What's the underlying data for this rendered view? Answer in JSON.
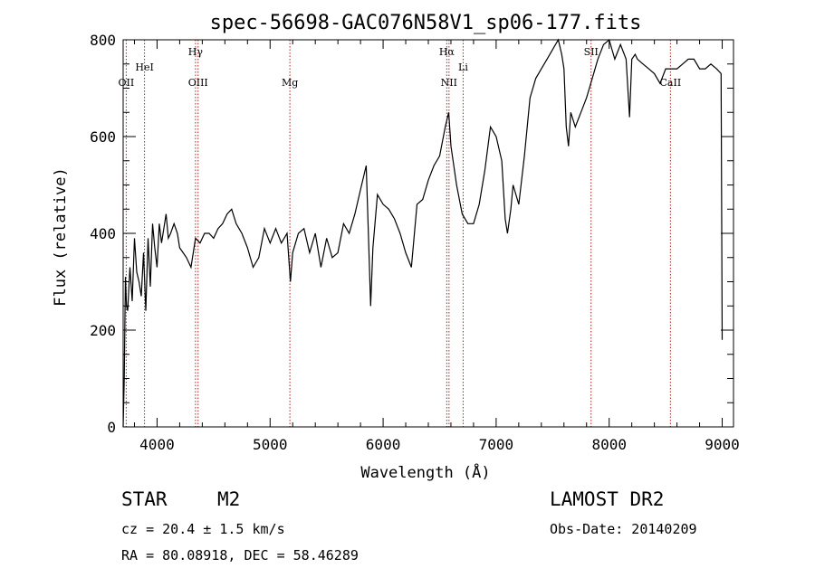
{
  "chart_data": {
    "type": "line",
    "title": "spec-56698-GAC076N58V1_sp06-177.fits",
    "xlabel": "Wavelength (Å)",
    "ylabel": "Flux (relative)",
    "xlim": [
      3700,
      9100
    ],
    "ylim": [
      0,
      800
    ],
    "x_ticks": [
      4000,
      5000,
      6000,
      7000,
      8000,
      9000
    ],
    "y_ticks": [
      0,
      200,
      400,
      600,
      800
    ],
    "x_tick_labels": [
      "4000",
      "5000",
      "6000",
      "7000",
      "8000",
      "9000"
    ],
    "y_tick_labels": [
      "0",
      "200",
      "400",
      "600",
      "800"
    ],
    "grid": false,
    "line_color": "#000000",
    "marker_color": "#b22222",
    "spectral_lines": [
      {
        "label": "OII",
        "wavelength": 3727
      },
      {
        "label": "HeI",
        "wavelength": 3889
      },
      {
        "label": "Hγ",
        "wavelength": 4340
      },
      {
        "label": "OIII",
        "wavelength": 4363
      },
      {
        "label": "Mg",
        "wavelength": 5175
      },
      {
        "label": "Hα",
        "wavelength": 6563
      },
      {
        "label": "NII",
        "wavelength": 6583
      },
      {
        "label": "Li",
        "wavelength": 6708
      },
      {
        "label": "SII",
        "wavelength": 7840
      },
      {
        "label": "CaII",
        "wavelength": 8542
      }
    ],
    "series": [
      {
        "x": [
          3700,
          3710,
          3720,
          3730,
          3740,
          3760,
          3780,
          3800,
          3820,
          3840,
          3860,
          3880,
          3900,
          3920,
          3940,
          3960,
          3980,
          4000,
          4020,
          4040,
          4060,
          4080,
          4100,
          4120,
          4150,
          4180,
          4200,
          4230,
          4260,
          4300,
          4340,
          4380,
          4420,
          4460,
          4500,
          4540,
          4580,
          4620,
          4660,
          4700,
          4750,
          4800,
          4850,
          4900,
          4950,
          5000,
          5050,
          5100,
          5150,
          5180,
          5200,
          5250,
          5300,
          5350,
          5400,
          5450,
          5500,
          5550,
          5600,
          5650,
          5700,
          5750,
          5800,
          5850,
          5870,
          5890,
          5910,
          5950,
          6000,
          6050,
          6100,
          6150,
          6200,
          6250,
          6300,
          6350,
          6400,
          6450,
          6500,
          6550,
          6580,
          6600,
          6650,
          6700,
          6750,
          6800,
          6850,
          6900,
          6950,
          7000,
          7050,
          7080,
          7100,
          7130,
          7150,
          7200,
          7250,
          7300,
          7350,
          7400,
          7450,
          7500,
          7550,
          7580,
          7600,
          7620,
          7640,
          7660,
          7700,
          7750,
          7800,
          7850,
          7900,
          7950,
          8000,
          8050,
          8100,
          8150,
          8180,
          8200,
          8230,
          8250,
          8300,
          8350,
          8400,
          8450,
          8500,
          8550,
          8600,
          8650,
          8700,
          8750,
          8800,
          8850,
          8900,
          8950,
          8990,
          9000
        ],
        "y": [
          0,
          100,
          310,
          250,
          240,
          330,
          260,
          390,
          320,
          300,
          270,
          360,
          240,
          390,
          290,
          420,
          370,
          330,
          420,
          380,
          410,
          440,
          390,
          400,
          420,
          400,
          370,
          360,
          350,
          330,
          390,
          380,
          400,
          400,
          390,
          410,
          420,
          440,
          450,
          420,
          400,
          370,
          330,
          350,
          410,
          380,
          410,
          380,
          400,
          300,
          360,
          400,
          410,
          360,
          400,
          330,
          390,
          350,
          360,
          420,
          400,
          440,
          490,
          540,
          400,
          250,
          370,
          480,
          460,
          450,
          430,
          400,
          360,
          330,
          460,
          470,
          510,
          540,
          560,
          620,
          650,
          580,
          500,
          440,
          420,
          420,
          460,
          530,
          620,
          600,
          550,
          430,
          400,
          450,
          500,
          460,
          560,
          680,
          720,
          740,
          760,
          780,
          800,
          770,
          740,
          620,
          580,
          650,
          620,
          650,
          680,
          720,
          760,
          790,
          800,
          760,
          790,
          760,
          640,
          760,
          770,
          760,
          750,
          740,
          730,
          710,
          740,
          740,
          740,
          750,
          760,
          760,
          740,
          740,
          750,
          740,
          730,
          180
        ]
      }
    ]
  },
  "info": {
    "object_type": "STAR",
    "subclass": "M2",
    "survey": "LAMOST DR2",
    "cz": "cz = 20.4 ± 1.5 km/s",
    "obs_date": "Obs-Date: 20140209",
    "coords": "RA =  80.08918, DEC =  58.46289"
  }
}
